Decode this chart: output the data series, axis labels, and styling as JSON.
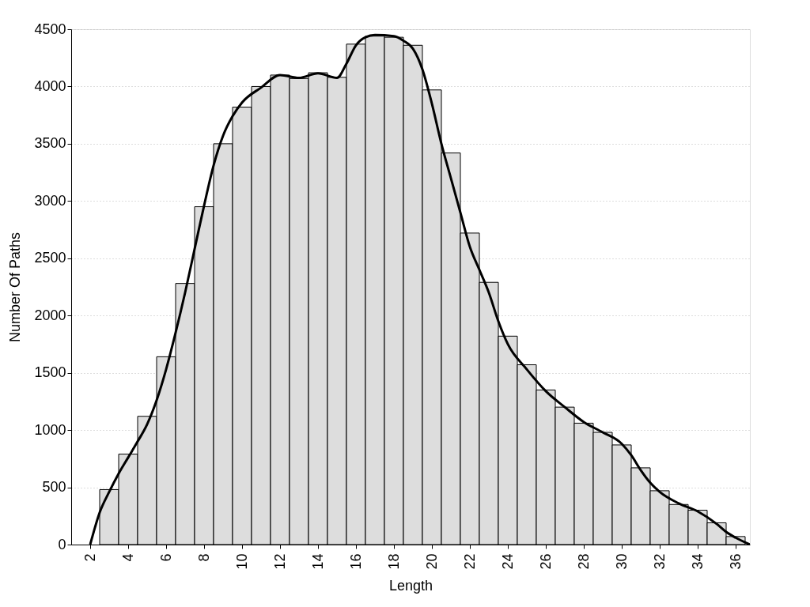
{
  "chart_data": {
    "type": "bar",
    "xlabel": "Length",
    "ylabel": "Number Of Paths",
    "x": [
      3,
      4,
      5,
      6,
      7,
      8,
      9,
      10,
      11,
      12,
      13,
      14,
      15,
      16,
      17,
      18,
      19,
      20,
      21,
      22,
      23,
      24,
      25,
      26,
      27,
      28,
      29,
      30,
      31,
      32,
      33,
      34,
      35,
      36
    ],
    "xlim": [
      1,
      36.75
    ],
    "xticks": [
      2,
      4,
      6,
      8,
      10,
      12,
      14,
      16,
      18,
      20,
      22,
      24,
      26,
      28,
      30,
      32,
      34,
      36
    ],
    "ylim": [
      0,
      4500
    ],
    "yticks": [
      0,
      500,
      1000,
      1500,
      2000,
      2500,
      3000,
      3500,
      4000,
      4500
    ],
    "grid": "y",
    "series": [
      {
        "color": "#dddddd",
        "values": [
          480,
          790,
          1120,
          1640,
          2280,
          2950,
          3500,
          3820,
          4000,
          4100,
          4070,
          4120,
          4080,
          4370,
          4440,
          4430,
          4360,
          3970,
          3420,
          2720,
          2290,
          1820,
          1570,
          1350,
          1200,
          1060,
          980,
          870,
          670,
          470,
          350,
          300,
          190,
          70
        ]
      },
      {
        "type": "line",
        "color": "#000000",
        "x": [
          2,
          2.5,
          3,
          3.5,
          4,
          4.5,
          5,
          5.5,
          6,
          6.5,
          7,
          7.5,
          8,
          8.5,
          9,
          9.5,
          10,
          11,
          12,
          13,
          14,
          15,
          15.5,
          16,
          16.5,
          17,
          18,
          18.5,
          19,
          19.5,
          20,
          20.5,
          21,
          21.5,
          22,
          22.5,
          23,
          23.5,
          24,
          25,
          26,
          27,
          28,
          29,
          30,
          30.5,
          31,
          31.5,
          32,
          33,
          34,
          35,
          35.5,
          36,
          36.75
        ],
        "values": [
          0,
          280,
          460,
          620,
          760,
          900,
          1050,
          1260,
          1530,
          1850,
          2200,
          2580,
          2960,
          3310,
          3570,
          3740,
          3860,
          3990,
          4100,
          4075,
          4115,
          4075,
          4200,
          4360,
          4430,
          4450,
          4440,
          4400,
          4330,
          4150,
          3850,
          3500,
          3200,
          2900,
          2600,
          2400,
          2200,
          1950,
          1750,
          1530,
          1340,
          1200,
          1070,
          980,
          880,
          780,
          650,
          540,
          460,
          360,
          290,
          180,
          110,
          60,
          0
        ]
      }
    ]
  }
}
